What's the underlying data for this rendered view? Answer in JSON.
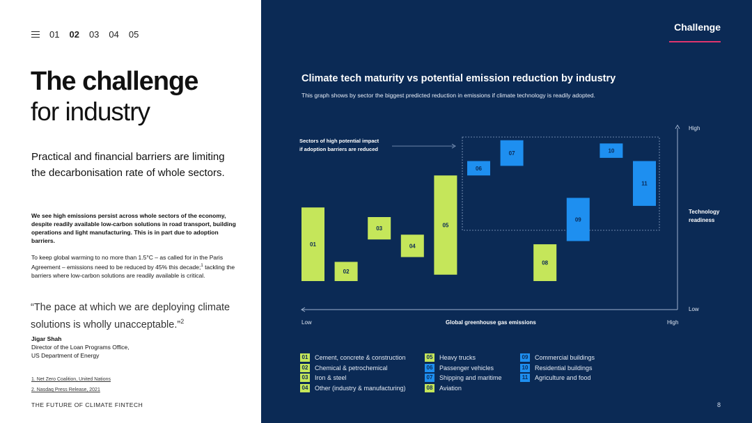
{
  "nav": {
    "items": [
      "01",
      "02",
      "03",
      "04",
      "05"
    ],
    "active_index": 1
  },
  "left": {
    "title_bold": "The challenge",
    "title_light": "for industry",
    "lead": "Practical and financial barriers are limiting the decarbonisation rate of whole sectors.",
    "body_bold": "We see high emissions persist across whole sectors of the economy, despite readily available low-carbon solutions in road transport, building operations and light manufacturing. This is in part due to adoption barriers.",
    "body_regular": "To keep global warming to no more than 1.5°C – as called for in the Paris Agreement – emissions need to be reduced by 45% this decade;",
    "body_regular_sup": "1",
    "body_regular_2": " tackling the barriers where low-carbon solutions are readily available is critical.",
    "quote": "“The pace at which we are deploying climate solutions is wholly unacceptable.”",
    "quote_sup": "2",
    "author_name": "Jigar Shah",
    "author_role": "Director of the Loan Programs Office,",
    "author_org": "US Department of Energy",
    "footnote_1": "1. Net Zero Coalition, United Nations",
    "footnote_2": "2. Nasdaq Press Release, 2021",
    "footer": "THE FUTURE OF CLIMATE FINTECH"
  },
  "right": {
    "section_label": "Challenge",
    "page_number": "8",
    "accent_color": "#e0356e"
  },
  "chart_data": {
    "type": "bar",
    "title": "Climate tech maturity vs potential emission reduction by industry",
    "subtitle": "This graph shows by sector the biggest predicted reduction in emissions if climate technology is readily adopted.",
    "xlabel": "Global greenhouse gas emissions",
    "x_low": "Low",
    "x_high": "High",
    "ylabel": "Technology readiness",
    "y_low": "Low",
    "y_high": "High",
    "ylim": [
      0,
      100
    ],
    "annotation": "Sectors of high potential impact if adoption barriers are reduced",
    "colors": {
      "green": "#c5e65a",
      "blue": "#1e8ff0"
    },
    "bars": [
      {
        "label": "01",
        "low": 10,
        "high": 56,
        "color": "green"
      },
      {
        "label": "02",
        "low": 10,
        "high": 22,
        "color": "green"
      },
      {
        "label": "03",
        "low": 36,
        "high": 50,
        "color": "green"
      },
      {
        "label": "04",
        "low": 25,
        "high": 39,
        "color": "green"
      },
      {
        "label": "05",
        "low": 14,
        "high": 76,
        "color": "green"
      },
      {
        "label": "06",
        "low": 76,
        "high": 85,
        "color": "blue"
      },
      {
        "label": "07",
        "low": 82,
        "high": 98,
        "color": "blue"
      },
      {
        "label": "08",
        "low": 10,
        "high": 33,
        "color": "green"
      },
      {
        "label": "09",
        "low": 35,
        "high": 62,
        "color": "blue"
      },
      {
        "label": "10",
        "low": 87,
        "high": 96,
        "color": "blue"
      },
      {
        "label": "11",
        "low": 57,
        "high": 85,
        "color": "blue"
      }
    ],
    "legend": [
      {
        "num": "01",
        "label": "Cement, concrete & construction",
        "color": "green"
      },
      {
        "num": "02",
        "label": "Chemical & petrochemical",
        "color": "green"
      },
      {
        "num": "03",
        "label": "Iron & steel",
        "color": "green"
      },
      {
        "num": "04",
        "label": "Other (industry & manufacturing)",
        "color": "green"
      },
      {
        "num": "05",
        "label": "Heavy trucks",
        "color": "green"
      },
      {
        "num": "06",
        "label": "Passenger vehicles",
        "color": "blue"
      },
      {
        "num": "07",
        "label": "Shipping and maritime",
        "color": "blue"
      },
      {
        "num": "08",
        "label": "Aviation",
        "color": "green"
      },
      {
        "num": "09",
        "label": "Commercial buildings",
        "color": "blue"
      },
      {
        "num": "10",
        "label": "Residential buildings",
        "color": "blue"
      },
      {
        "num": "11",
        "label": "Agriculture and food",
        "color": "blue"
      }
    ]
  }
}
